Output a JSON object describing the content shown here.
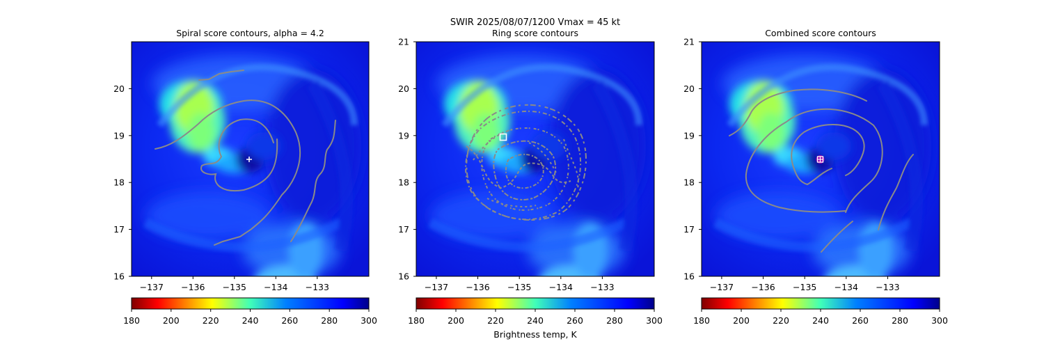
{
  "figure": {
    "suptitle_line1": "SWIR  2025/08/07/1200    Vmax = 45 kt",
    "colorbar_label": "Brightness temp, K"
  },
  "chart_data": [
    {
      "type": "heatmap",
      "title": "Spiral score contours, alpha =  4.2",
      "xlim": [
        -137.5,
        -131.7
      ],
      "ylim": [
        16,
        21
      ],
      "xticks": [
        -137,
        -136,
        -135,
        -134,
        -133
      ],
      "xtick_labels": [
        "−137",
        "−136",
        "−135",
        "−134",
        "−133"
      ],
      "yticks": [
        16,
        17,
        18,
        19,
        20
      ],
      "ytick_labels": [
        "16",
        "17",
        "18",
        "19",
        "20"
      ],
      "center_marker": {
        "symbol": "plus",
        "lon": -134.7,
        "lat": 18.5,
        "color": "#ffffff"
      },
      "contour_style": "spiral",
      "colorbar": {
        "vmin": 180,
        "vmax": 300,
        "ticks": [
          "180",
          "200",
          "220",
          "240",
          "260",
          "280",
          "300"
        ],
        "cmap": "jet_r"
      }
    },
    {
      "type": "heatmap",
      "title": "Ring score contours",
      "xlim": [
        -137.5,
        -131.7
      ],
      "ylim": [
        16,
        21
      ],
      "xticks": [
        -137,
        -136,
        -135,
        -134,
        -133
      ],
      "xtick_labels": [
        "−137",
        "−136",
        "−135",
        "−134",
        "−133"
      ],
      "yticks": [
        16,
        17,
        18,
        19,
        20,
        21
      ],
      "ytick_labels": [
        "16",
        "17",
        "18",
        "19",
        "20",
        "21"
      ],
      "center_marker": {
        "symbol": "square",
        "lon": -135.4,
        "lat": 18.95,
        "color": "#ffffff"
      },
      "contour_style": "ring",
      "colorbar": {
        "vmin": 180,
        "vmax": 300,
        "ticks": [
          "180",
          "200",
          "220",
          "240",
          "260",
          "280",
          "300"
        ],
        "cmap": "jet_r"
      }
    },
    {
      "type": "heatmap",
      "title": "Combined score contours",
      "xlim": [
        -137.5,
        -131.7
      ],
      "ylim": [
        16,
        21
      ],
      "xticks": [
        -137,
        -136,
        -135,
        -134,
        -133
      ],
      "xtick_labels": [
        "−137",
        "−136",
        "−135",
        "−134",
        "−133"
      ],
      "yticks": [
        16,
        17,
        18,
        19,
        20,
        21
      ],
      "ytick_labels": [
        "16",
        "17",
        "18",
        "19",
        "20",
        "21"
      ],
      "center_marker": {
        "symbol": "square-plus-circle",
        "lon": -134.7,
        "lat": 18.5,
        "color": "#ffffff",
        "ring_color": "#b000b0"
      },
      "contour_style": "spiral",
      "colorbar": {
        "vmin": 180,
        "vmax": 300,
        "ticks": [
          "180",
          "200",
          "220",
          "240",
          "260",
          "280",
          "300"
        ],
        "cmap": "jet_r"
      }
    }
  ],
  "colors": {
    "contour": "#8a8a8a",
    "background_cold": "#00008b"
  }
}
